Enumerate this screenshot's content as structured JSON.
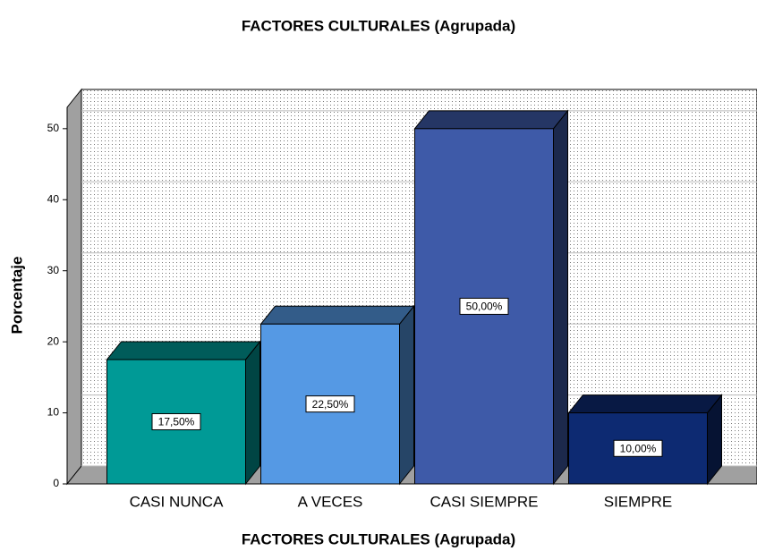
{
  "chart_data": {
    "type": "bar3d",
    "title": "FACTORES CULTURALES (Agrupada)",
    "x_label": "FACTORES CULTURALES (Agrupada)",
    "y_label": "Porcentaje",
    "categories": [
      "CASI NUNCA",
      "A VECES",
      "CASI SIEMPRE",
      "SIEMPRE"
    ],
    "values": [
      17.5,
      22.5,
      50,
      10
    ],
    "value_labels": [
      "17,50%",
      "22,50%",
      "50,00%",
      "10,00%"
    ],
    "colors": [
      "#009a96",
      "#5599e4",
      "#3e5aa8",
      "#0d2a72"
    ],
    "ylim": [
      0,
      53
    ],
    "yticks": [
      0,
      10,
      20,
      30,
      40,
      50
    ],
    "grid": true
  }
}
